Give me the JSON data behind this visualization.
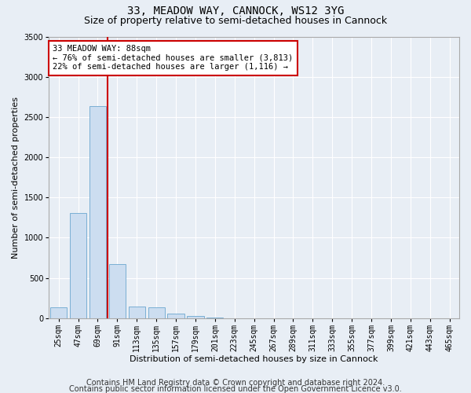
{
  "title": "33, MEADOW WAY, CANNOCK, WS12 3YG",
  "subtitle": "Size of property relative to semi-detached houses in Cannock",
  "xlabel": "Distribution of semi-detached houses by size in Cannock",
  "ylabel": "Number of semi-detached properties",
  "categories": [
    "25sqm",
    "47sqm",
    "69sqm",
    "91sqm",
    "113sqm",
    "135sqm",
    "157sqm",
    "179sqm",
    "201sqm",
    "223sqm",
    "245sqm",
    "267sqm",
    "289sqm",
    "311sqm",
    "333sqm",
    "355sqm",
    "377sqm",
    "399sqm",
    "421sqm",
    "443sqm",
    "465sqm"
  ],
  "values": [
    130,
    1310,
    2640,
    670,
    140,
    130,
    60,
    30,
    4,
    2,
    1,
    0,
    0,
    0,
    0,
    0,
    0,
    0,
    0,
    0,
    0
  ],
  "bar_color": "#ccddf0",
  "bar_edge_color": "#7aafd4",
  "property_line_color": "#cc0000",
  "property_line_x": 2.5,
  "annotation_text": "33 MEADOW WAY: 88sqm\n← 76% of semi-detached houses are smaller (3,813)\n22% of semi-detached houses are larger (1,116) →",
  "annotation_box_color": "#ffffff",
  "annotation_box_edge_color": "#cc0000",
  "ylim": [
    0,
    3500
  ],
  "yticks": [
    0,
    500,
    1000,
    1500,
    2000,
    2500,
    3000,
    3500
  ],
  "footer1": "Contains HM Land Registry data © Crown copyright and database right 2024.",
  "footer2": "Contains public sector information licensed under the Open Government Licence v3.0.",
  "background_color": "#e8eef5",
  "plot_background_color": "#e8eef5",
  "grid_color": "#ffffff",
  "title_fontsize": 10,
  "subtitle_fontsize": 9,
  "axis_label_fontsize": 8,
  "tick_fontsize": 7,
  "annotation_fontsize": 7.5,
  "footer_fontsize": 7
}
